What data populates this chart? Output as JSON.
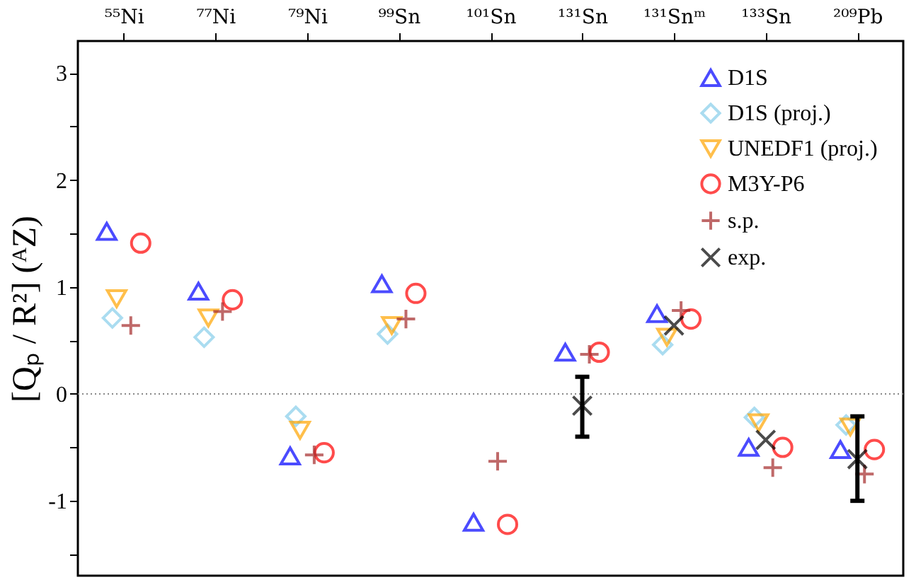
{
  "chart_data": {
    "type": "scatter",
    "ylabel": "[Qₚ / R²] (ᴬZ)",
    "categories": [
      "⁵⁵Ni",
      "⁷⁷Ni",
      "⁷⁹Ni",
      "⁹⁹Sn",
      "¹⁰¹Sn",
      "¹³¹Sn",
      "¹³¹Snᵐ",
      "¹³³Sn",
      "²⁰⁹Pb"
    ],
    "ylim": [
      -1.7,
      3.3
    ],
    "yticks": [
      {
        "value": -1.5,
        "label": null
      },
      -1,
      {
        "value": -0.5,
        "label": null
      },
      0,
      {
        "value": 0.5,
        "label": null
      },
      1,
      {
        "value": 1.5,
        "label": null
      },
      2,
      {
        "value": 2.5,
        "label": null
      },
      3
    ],
    "grid": false,
    "legend": "top right",
    "ref_lines": [
      {
        "axis": "y",
        "value": 0,
        "color": "#888888",
        "line_style": "dotted"
      }
    ],
    "series": [
      {
        "name": "D1S",
        "color": "#0000ff",
        "marker": "triangle",
        "values": [
          1.52,
          0.96,
          -0.58,
          1.03,
          -1.2,
          0.39,
          0.75,
          -0.5,
          -0.52
        ]
      },
      {
        "name": "D1S (proj.)",
        "color": "#87ceeb",
        "marker": "diamond",
        "values": [
          0.71,
          0.53,
          -0.21,
          0.56,
          null,
          null,
          0.46,
          -0.22,
          -0.29
        ]
      },
      {
        "name": "UNEDF1 (proj.)",
        "color": "#ffa500",
        "marker": "triangle-down",
        "values": [
          0.89,
          0.71,
          -0.34,
          0.64,
          null,
          null,
          0.53,
          -0.27,
          -0.31
        ]
      },
      {
        "name": "M3Y-P6",
        "color": "#ff0000",
        "marker": "circle",
        "values": [
          1.41,
          0.88,
          -0.55,
          0.94,
          -1.22,
          0.39,
          0.7,
          -0.5,
          -0.52
        ]
      },
      {
        "name": "s.p.",
        "color": "#a52a2a",
        "marker": "cross",
        "values": [
          0.64,
          0.77,
          -0.57,
          0.7,
          -0.63,
          0.37,
          0.78,
          -0.69,
          -0.75
        ]
      },
      {
        "name": "exp.",
        "color": "#000000",
        "marker": "x",
        "values": [
          null,
          null,
          null,
          null,
          null,
          -0.11,
          0.64,
          -0.43,
          -0.61
        ],
        "errors": [
          null,
          null,
          null,
          null,
          null,
          [
            -0.4,
            0.16
          ],
          null,
          null,
          [
            -1.0,
            -0.21
          ]
        ]
      }
    ]
  }
}
